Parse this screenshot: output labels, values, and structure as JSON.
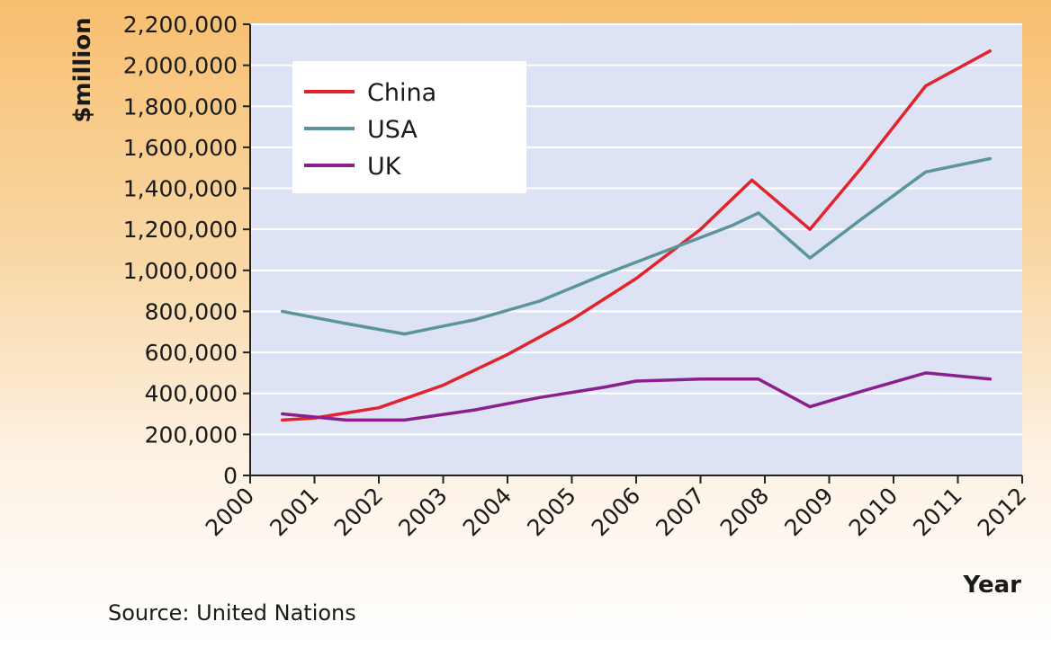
{
  "chart_data": {
    "type": "line",
    "ylabel": "$million",
    "xlabel": "Year",
    "source": "Source: United Nations",
    "xlim": [
      2000,
      2012
    ],
    "ylim": [
      0,
      2200000
    ],
    "x_ticks": [
      "2000",
      "2001",
      "2002",
      "2003",
      "2004",
      "2005",
      "2006",
      "2007",
      "2008",
      "2009",
      "2010",
      "2011",
      "2012"
    ],
    "y_ticks": [
      "0",
      "200,000",
      "400,000",
      "600,000",
      "800,000",
      "1,000,000",
      "1,200,000",
      "1,400,000",
      "1,600,000",
      "1,800,000",
      "2,000,000",
      "2,200,000"
    ],
    "grid": true,
    "legend_position": "top-left",
    "series": [
      {
        "name": "China",
        "color": "#e3232b",
        "x": [
          2000.5,
          2001,
          2002,
          2003,
          2004,
          2005,
          2006,
          2007,
          2007.8,
          2008.7,
          2009.5,
          2010.5,
          2011.5
        ],
        "y": [
          270000,
          280000,
          330000,
          440000,
          590000,
          760000,
          960000,
          1200000,
          1440000,
          1200000,
          1500000,
          1900000,
          2070000
        ]
      },
      {
        "name": "USA",
        "color": "#5b959c",
        "x": [
          2000.5,
          2001.5,
          2002.4,
          2003.5,
          2004.5,
          2005.5,
          2006.5,
          2007.5,
          2007.9,
          2008.7,
          2009.5,
          2010.5,
          2011.5
        ],
        "y": [
          800000,
          740000,
          690000,
          760000,
          850000,
          980000,
          1100000,
          1220000,
          1280000,
          1060000,
          1250000,
          1480000,
          1545000
        ]
      },
      {
        "name": "UK",
        "color": "#8b1f8c",
        "x": [
          2000.5,
          2001.5,
          2002.4,
          2003.5,
          2004.5,
          2005.5,
          2006,
          2007,
          2007.9,
          2008.7,
          2009.5,
          2010.5,
          2011.5
        ],
        "y": [
          300000,
          270000,
          270000,
          320000,
          380000,
          430000,
          460000,
          470000,
          470000,
          335000,
          410000,
          500000,
          470000
        ]
      }
    ]
  }
}
